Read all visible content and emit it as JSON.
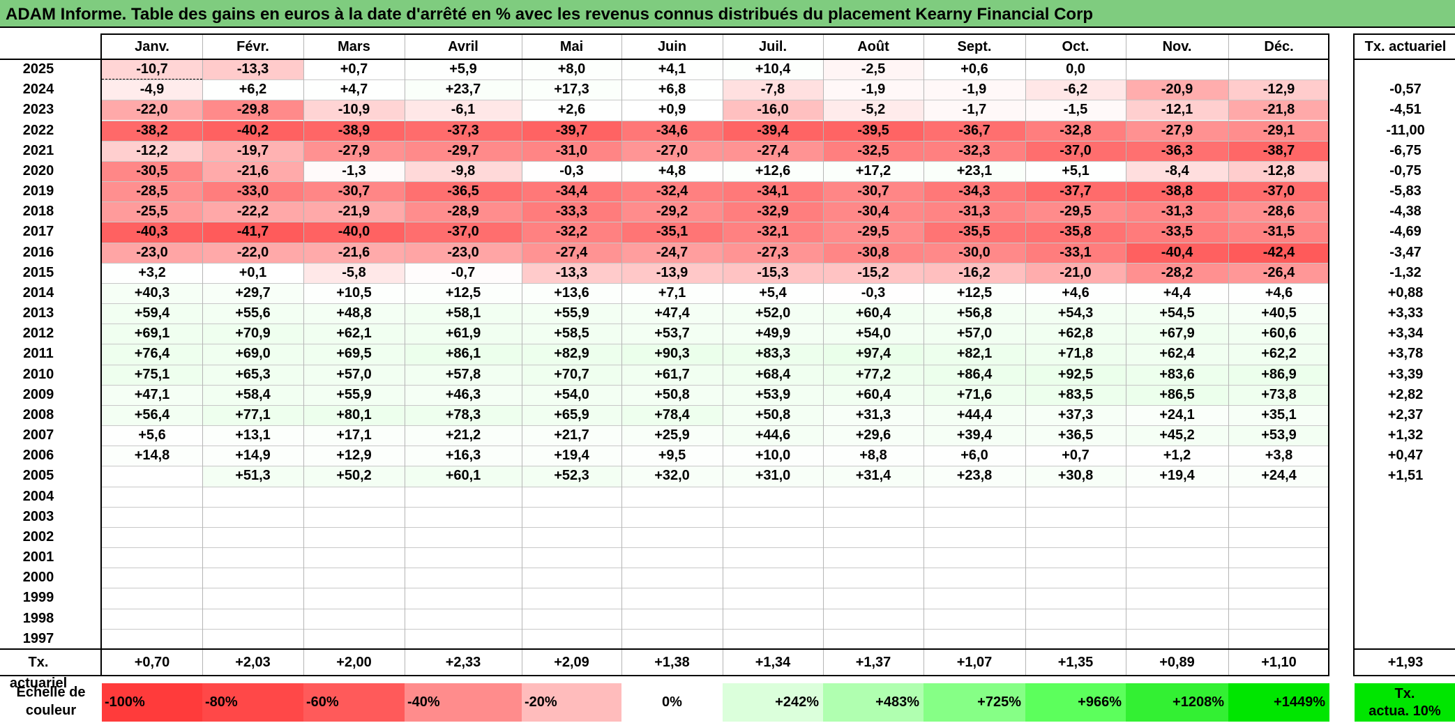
{
  "title": "ADAM Informe. Table des gains en euros à la date d'arrêté en % avec les revenus connus distribués du placement Kearny Financial Corp",
  "months": [
    "Janv.",
    "Févr.",
    "Mars",
    "Avril",
    "Mai",
    "Juin",
    "Juil.",
    "Août",
    "Sept.",
    "Oct.",
    "Nov.",
    "Déc."
  ],
  "rate_header": "Tx. actuariel",
  "rows": [
    {
      "year": "2025",
      "values": [
        "-10,7",
        "-13,3",
        "+0,7",
        "+5,9",
        "+8,0",
        "+4,1",
        "+10,4",
        "-2,5",
        "+0,6",
        "0,0",
        "",
        ""
      ],
      "rate": ""
    },
    {
      "year": "2024",
      "values": [
        "-4,9",
        "+6,2",
        "+4,7",
        "+23,7",
        "+17,3",
        "+6,8",
        "-7,8",
        "-1,9",
        "-1,9",
        "-6,2",
        "-20,9",
        "-12,9"
      ],
      "rate": "-0,57"
    },
    {
      "year": "2023",
      "values": [
        "-22,0",
        "-29,8",
        "-10,9",
        "-6,1",
        "+2,6",
        "+0,9",
        "-16,0",
        "-5,2",
        "-1,7",
        "-1,5",
        "-12,1",
        "-21,8"
      ],
      "rate": "-4,51"
    },
    {
      "year": "2022",
      "values": [
        "-38,2",
        "-40,2",
        "-38,9",
        "-37,3",
        "-39,7",
        "-34,6",
        "-39,4",
        "-39,5",
        "-36,7",
        "-32,8",
        "-27,9",
        "-29,1"
      ],
      "rate": "-11,00"
    },
    {
      "year": "2021",
      "values": [
        "-12,2",
        "-19,7",
        "-27,9",
        "-29,7",
        "-31,0",
        "-27,0",
        "-27,4",
        "-32,5",
        "-32,3",
        "-37,0",
        "-36,3",
        "-38,7"
      ],
      "rate": "-6,75"
    },
    {
      "year": "2020",
      "values": [
        "-30,5",
        "-21,6",
        "-1,3",
        "-9,8",
        "-0,3",
        "+4,8",
        "+12,6",
        "+17,2",
        "+23,1",
        "+5,1",
        "-8,4",
        "-12,8"
      ],
      "rate": "-0,75"
    },
    {
      "year": "2019",
      "values": [
        "-28,5",
        "-33,0",
        "-30,7",
        "-36,5",
        "-34,4",
        "-32,4",
        "-34,1",
        "-30,7",
        "-34,3",
        "-37,7",
        "-38,8",
        "-37,0"
      ],
      "rate": "-5,83"
    },
    {
      "year": "2018",
      "values": [
        "-25,5",
        "-22,2",
        "-21,9",
        "-28,9",
        "-33,3",
        "-29,2",
        "-32,9",
        "-30,4",
        "-31,3",
        "-29,5",
        "-31,3",
        "-28,6"
      ],
      "rate": "-4,38"
    },
    {
      "year": "2017",
      "values": [
        "-40,3",
        "-41,7",
        "-40,0",
        "-37,0",
        "-32,2",
        "-35,1",
        "-32,1",
        "-29,5",
        "-35,5",
        "-35,8",
        "-33,5",
        "-31,5"
      ],
      "rate": "-4,69"
    },
    {
      "year": "2016",
      "values": [
        "-23,0",
        "-22,0",
        "-21,6",
        "-23,0",
        "-27,4",
        "-24,7",
        "-27,3",
        "-30,8",
        "-30,0",
        "-33,1",
        "-40,4",
        "-42,4"
      ],
      "rate": "-3,47"
    },
    {
      "year": "2015",
      "values": [
        "+3,2",
        "+0,1",
        "-5,8",
        "-0,7",
        "-13,3",
        "-13,9",
        "-15,3",
        "-15,2",
        "-16,2",
        "-21,0",
        "-28,2",
        "-26,4"
      ],
      "rate": "-1,32"
    },
    {
      "year": "2014",
      "values": [
        "+40,3",
        "+29,7",
        "+10,5",
        "+12,5",
        "+13,6",
        "+7,1",
        "+5,4",
        "-0,3",
        "+12,5",
        "+4,6",
        "+4,4",
        "+4,6"
      ],
      "rate": "+0,88"
    },
    {
      "year": "2013",
      "values": [
        "+59,4",
        "+55,6",
        "+48,8",
        "+58,1",
        "+55,9",
        "+47,4",
        "+52,0",
        "+60,4",
        "+56,8",
        "+54,3",
        "+54,5",
        "+40,5"
      ],
      "rate": "+3,33"
    },
    {
      "year": "2012",
      "values": [
        "+69,1",
        "+70,9",
        "+62,1",
        "+61,9",
        "+58,5",
        "+53,7",
        "+49,9",
        "+54,0",
        "+57,0",
        "+62,8",
        "+67,9",
        "+60,6"
      ],
      "rate": "+3,34"
    },
    {
      "year": "2011",
      "values": [
        "+76,4",
        "+69,0",
        "+69,5",
        "+86,1",
        "+82,9",
        "+90,3",
        "+83,3",
        "+97,4",
        "+82,1",
        "+71,8",
        "+62,4",
        "+62,2"
      ],
      "rate": "+3,78"
    },
    {
      "year": "2010",
      "values": [
        "+75,1",
        "+65,3",
        "+57,0",
        "+57,8",
        "+70,7",
        "+61,7",
        "+68,4",
        "+77,2",
        "+86,4",
        "+92,5",
        "+83,6",
        "+86,9"
      ],
      "rate": "+3,39"
    },
    {
      "year": "2009",
      "values": [
        "+47,1",
        "+58,4",
        "+55,9",
        "+46,3",
        "+54,0",
        "+50,8",
        "+53,9",
        "+60,4",
        "+71,6",
        "+83,5",
        "+86,5",
        "+73,8"
      ],
      "rate": "+2,82"
    },
    {
      "year": "2008",
      "values": [
        "+56,4",
        "+77,1",
        "+80,1",
        "+78,3",
        "+65,9",
        "+78,4",
        "+50,8",
        "+31,3",
        "+44,4",
        "+37,3",
        "+24,1",
        "+35,1"
      ],
      "rate": "+2,37"
    },
    {
      "year": "2007",
      "values": [
        "+5,6",
        "+13,1",
        "+17,1",
        "+21,2",
        "+21,7",
        "+25,9",
        "+44,6",
        "+29,6",
        "+39,4",
        "+36,5",
        "+45,2",
        "+53,9"
      ],
      "rate": "+1,32"
    },
    {
      "year": "2006",
      "values": [
        "+14,8",
        "+14,9",
        "+12,9",
        "+16,3",
        "+19,4",
        "+9,5",
        "+10,0",
        "+8,8",
        "+6,0",
        "+0,7",
        "+1,2",
        "+3,8"
      ],
      "rate": "+0,47"
    },
    {
      "year": "2005",
      "values": [
        "",
        "+51,3",
        "+50,2",
        "+60,1",
        "+52,3",
        "+32,0",
        "+31,0",
        "+31,4",
        "+23,8",
        "+30,8",
        "+19,4",
        "+24,4"
      ],
      "rate": "+1,51"
    },
    {
      "year": "2004",
      "values": [
        "",
        "",
        "",
        "",
        "",
        "",
        "",
        "",
        "",
        "",
        "",
        ""
      ],
      "rate": ""
    },
    {
      "year": "2003",
      "values": [
        "",
        "",
        "",
        "",
        "",
        "",
        "",
        "",
        "",
        "",
        "",
        ""
      ],
      "rate": ""
    },
    {
      "year": "2002",
      "values": [
        "",
        "",
        "",
        "",
        "",
        "",
        "",
        "",
        "",
        "",
        "",
        ""
      ],
      "rate": ""
    },
    {
      "year": "2001",
      "values": [
        "",
        "",
        "",
        "",
        "",
        "",
        "",
        "",
        "",
        "",
        "",
        ""
      ],
      "rate": ""
    },
    {
      "year": "2000",
      "values": [
        "",
        "",
        "",
        "",
        "",
        "",
        "",
        "",
        "",
        "",
        "",
        ""
      ],
      "rate": ""
    },
    {
      "year": "1999",
      "values": [
        "",
        "",
        "",
        "",
        "",
        "",
        "",
        "",
        "",
        "",
        "",
        ""
      ],
      "rate": ""
    },
    {
      "year": "1998",
      "values": [
        "",
        "",
        "",
        "",
        "",
        "",
        "",
        "",
        "",
        "",
        "",
        ""
      ],
      "rate": ""
    },
    {
      "year": "1997",
      "values": [
        "",
        "",
        "",
        "",
        "",
        "",
        "",
        "",
        "",
        "",
        "",
        ""
      ],
      "rate": ""
    }
  ],
  "summary": {
    "label": "Tx. actuariel",
    "values": [
      "+0,70",
      "+2,03",
      "+2,00",
      "+2,33",
      "+2,09",
      "+1,38",
      "+1,34",
      "+1,37",
      "+1,07",
      "+1,35",
      "+0,89",
      "+1,10"
    ],
    "total": "+1,93"
  },
  "scale": {
    "label_line1": "Echelle de",
    "label_line2": "couleur",
    "steps": [
      {
        "label": "-100%",
        "color": "#ff3b3b"
      },
      {
        "label": "-80%",
        "color": "#ff4848"
      },
      {
        "label": "-60%",
        "color": "#ff5a5a"
      },
      {
        "label": "-40%",
        "color": "#ff8c8c"
      },
      {
        "label": "-20%",
        "color": "#ffbcbc"
      },
      {
        "label": "0%",
        "color": "#ffffff"
      },
      {
        "label": "+242%",
        "color": "#dbffdb"
      },
      {
        "label": "+483%",
        "color": "#b0ffb0"
      },
      {
        "label": "+725%",
        "color": "#86ff86"
      },
      {
        "label": "+966%",
        "color": "#5cff5c"
      },
      {
        "label": "+1208%",
        "color": "#33f033"
      },
      {
        "label": "+1449%",
        "color": "#00e600"
      }
    ],
    "rate_label_line1": "Tx.",
    "rate_label_line2": "actua. 10%",
    "rate_color": "#00e600"
  },
  "colors": {
    "title_bg": "#7fcc7f",
    "negative_scale": "#ff3b3b",
    "positive_tint": "#f3fcf3"
  }
}
